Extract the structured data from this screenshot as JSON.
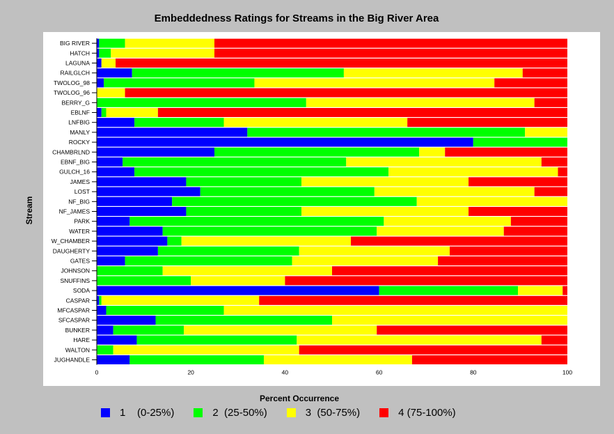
{
  "chart_data": {
    "type": "bar",
    "orientation": "horizontal",
    "stacked": true,
    "title": "Embeddedness Ratings for Streams in the Big River Area",
    "xlabel": "Percent Occurrence",
    "ylabel": "Stream",
    "xlim": [
      0,
      100
    ],
    "xticks": [
      "0",
      "20",
      "40",
      "60",
      "80",
      "100"
    ],
    "grid": false,
    "legend_position": "bottom",
    "categories": [
      "BIG RIVER",
      "HATCH",
      "LAGUNA",
      "RAILGLCH",
      "TWOLOG_98",
      "TWOLOG_96",
      "BERRY_G",
      "EBLNF",
      "LNFBIG",
      "MANLY",
      "ROCKY",
      "CHAMBRLND",
      "EBNF_BIG",
      "GULCH_16",
      "JAMES",
      "LOST",
      "NF_BIG",
      "NF_JAMES",
      "PARK",
      "WATER",
      "W_CHAMBER",
      "DAUGHERTY",
      "GATES",
      "JOHNSON",
      "SNUFFINS",
      "SODA",
      "CASPAR",
      "MFCASPAR",
      "SFCASPAR",
      "BUNKER",
      "HARE",
      "WALTON",
      "JUGHANDLE"
    ],
    "series": [
      {
        "name": "1",
        "label": "1    (0-25%)",
        "color": "#0000ff",
        "values": [
          0.5,
          0.5,
          1,
          7.5,
          1.5,
          0,
          0,
          1,
          8,
          32,
          80,
          25,
          5.5,
          8,
          19,
          22,
          16,
          19,
          7,
          14,
          15,
          13,
          6,
          0,
          0,
          60,
          0.5,
          2,
          12.5,
          3.5,
          8.5,
          0,
          7
        ]
      },
      {
        "name": "2",
        "label": "2  (25-50%)",
        "color": "#00ff00",
        "values": [
          5.5,
          2.5,
          0,
          45,
          32,
          0,
          44.5,
          1,
          19,
          59,
          20,
          43.5,
          47.5,
          54,
          24.5,
          37,
          52,
          24.5,
          54,
          45.5,
          3,
          30,
          35.5,
          14,
          20,
          29.5,
          0.5,
          25,
          37.5,
          15,
          34,
          3.5,
          28.5
        ]
      },
      {
        "name": "3",
        "label": "3  (50-75%)",
        "color": "#ffff00",
        "values": [
          19,
          22,
          3,
          38,
          51,
          6,
          48.5,
          11,
          39,
          9,
          0,
          5.5,
          41.5,
          36,
          35.5,
          34,
          32,
          35.5,
          27,
          27,
          36,
          32,
          31,
          36,
          20,
          9.5,
          33.5,
          73,
          50,
          41,
          52,
          39.5,
          31.5
        ]
      },
      {
        "name": "4",
        "label": "4 (75-100%)",
        "color": "#ff0000",
        "values": [
          75,
          75,
          96,
          9.5,
          15.5,
          94,
          7,
          87,
          34,
          0,
          0,
          26,
          5.5,
          2,
          21,
          7,
          0,
          21,
          12,
          13.5,
          46,
          25,
          27.5,
          50,
          60,
          1,
          65.5,
          0,
          0,
          40.5,
          5.5,
          57,
          33
        ]
      }
    ]
  }
}
